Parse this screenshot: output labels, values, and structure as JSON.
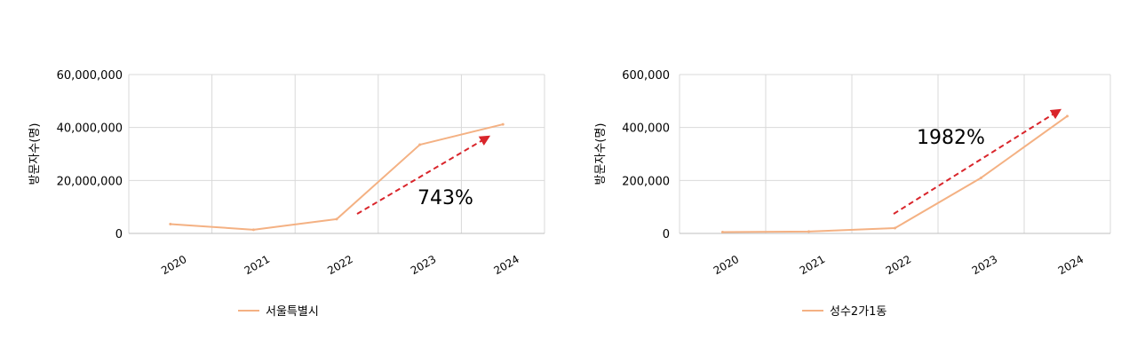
{
  "chart_data": [
    {
      "type": "line",
      "ylabel": "방문자수(명)",
      "categories": [
        "2020",
        "2021",
        "2022",
        "2023",
        "2024"
      ],
      "series": [
        {
          "name": "서울특별시",
          "values": [
            3500000,
            1400000,
            5400000,
            33500000,
            41200000
          ],
          "color": "#f4b183"
        }
      ],
      "ylim": [
        0,
        60000000
      ],
      "yticks": [
        "0",
        "20,000,000",
        "40,000,000",
        "60,000,000"
      ],
      "grid": true,
      "legend_position": "bottom-center",
      "annotation": {
        "text": "743%",
        "arrow_color": "#d9252b"
      }
    },
    {
      "type": "line",
      "ylabel": "방문자수(명)",
      "categories": [
        "2020",
        "2021",
        "2022",
        "2023",
        "2024"
      ],
      "series": [
        {
          "name": "성수2가1동",
          "values": [
            5000,
            7000,
            20000,
            210000,
            443000
          ],
          "color": "#f4b183"
        }
      ],
      "ylim": [
        0,
        600000
      ],
      "yticks": [
        "0",
        "200,000",
        "400,000",
        "600,000"
      ],
      "grid": true,
      "legend_position": "bottom-center",
      "annotation": {
        "text": "1982%",
        "arrow_color": "#d9252b"
      }
    }
  ]
}
